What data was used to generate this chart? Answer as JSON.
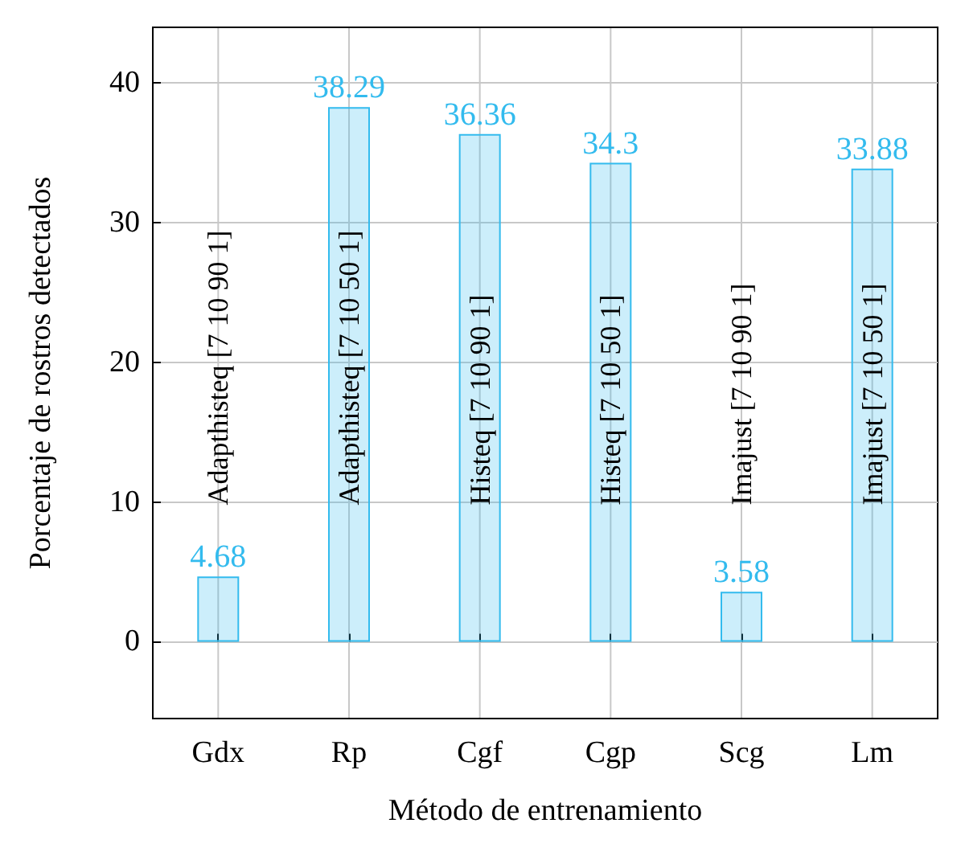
{
  "chart_data": {
    "type": "bar",
    "xlabel": "Método de entrenamiento",
    "ylabel": "Porcentaje de rostros detectados",
    "categories": [
      "Gdx",
      "Rp",
      "Cgf",
      "Cgp",
      "Scg",
      "Lm"
    ],
    "values": [
      4.68,
      38.29,
      36.36,
      34.3,
      3.58,
      33.88
    ],
    "color": "#33bbee",
    "ylim": [
      -5.5,
      44
    ],
    "yticks": [
      0,
      10,
      20,
      30,
      40
    ],
    "grid": true,
    "data_labels": true,
    "annotations": [
      "Adapthisteq [7 10 90 1]",
      "Adapthisteq [7 10 50 1]",
      "Histeq [7 10 90 1]",
      "Histeq [7 10 50 1]",
      "Imajust [7 10 90 1]",
      "Imajust [7 10 50 1]"
    ]
  }
}
